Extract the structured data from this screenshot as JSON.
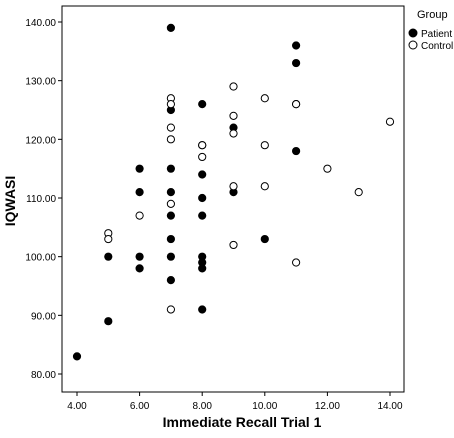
{
  "chart_data": {
    "type": "scatter",
    "title": "",
    "xlabel": "Immediate Recall Trial 1",
    "ylabel": "IQWASI",
    "xlim": [
      3.5,
      15
    ],
    "ylim": [
      76,
      142
    ],
    "xticks": [
      4,
      6,
      8,
      10,
      12,
      14
    ],
    "xtick_labels": [
      "4.00",
      "6.00",
      "8.00",
      "10.00",
      "12.00",
      "14.00"
    ],
    "yticks": [
      80,
      90,
      100,
      110,
      120,
      130,
      140
    ],
    "ytick_labels": [
      "80.00",
      "90.00",
      "100.00",
      "110.00",
      "120.00",
      "130.00",
      "140.00"
    ],
    "grid": false,
    "legend": {
      "title": "Group",
      "position": "top-right"
    },
    "series": [
      {
        "name": "Patient",
        "marker": "filled-circle",
        "points": [
          [
            4,
            83
          ],
          [
            5,
            89
          ],
          [
            5,
            100
          ],
          [
            6,
            115
          ],
          [
            6,
            111
          ],
          [
            6,
            100
          ],
          [
            6,
            98
          ],
          [
            7,
            139
          ],
          [
            7,
            125
          ],
          [
            7,
            115
          ],
          [
            7,
            111
          ],
          [
            7,
            107
          ],
          [
            7,
            103
          ],
          [
            7,
            100
          ],
          [
            7,
            96
          ],
          [
            8,
            126
          ],
          [
            8,
            114
          ],
          [
            8,
            110
          ],
          [
            8,
            107
          ],
          [
            8,
            100
          ],
          [
            8,
            99
          ],
          [
            8,
            98
          ],
          [
            8,
            91
          ],
          [
            9,
            122
          ],
          [
            9,
            111
          ],
          [
            10,
            103
          ],
          [
            11,
            136
          ],
          [
            11,
            133
          ],
          [
            11,
            118
          ]
        ]
      },
      {
        "name": "Control",
        "marker": "open-circle",
        "points": [
          [
            5,
            104
          ],
          [
            5,
            103
          ],
          [
            6,
            107
          ],
          [
            7,
            127
          ],
          [
            7,
            126
          ],
          [
            7,
            122
          ],
          [
            7,
            120
          ],
          [
            7,
            109
          ],
          [
            7,
            91
          ],
          [
            8,
            119
          ],
          [
            8,
            119
          ],
          [
            8,
            117
          ],
          [
            9,
            129
          ],
          [
            9,
            124
          ],
          [
            9,
            121
          ],
          [
            9,
            112
          ],
          [
            9,
            102
          ],
          [
            10,
            127
          ],
          [
            10,
            119
          ],
          [
            10,
            112
          ],
          [
            11,
            126
          ],
          [
            11,
            126
          ],
          [
            11,
            99
          ],
          [
            12,
            115
          ],
          [
            13,
            111
          ],
          [
            14,
            123
          ]
        ]
      }
    ]
  }
}
